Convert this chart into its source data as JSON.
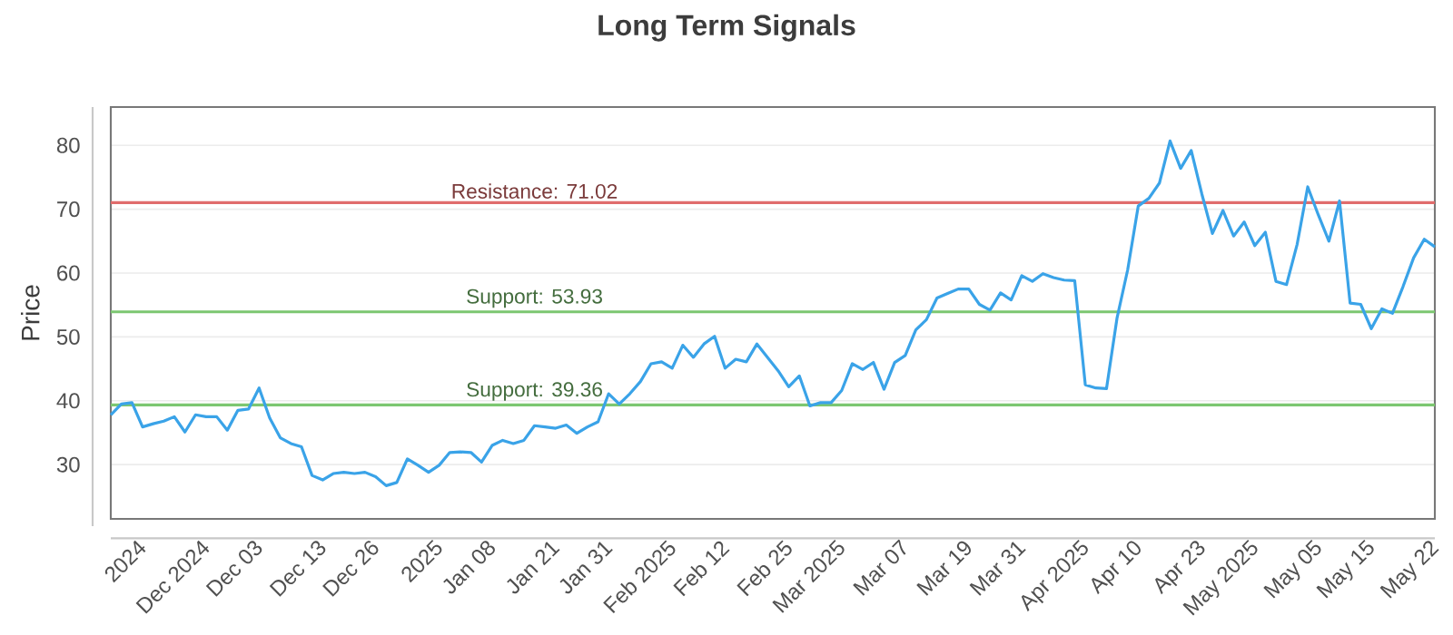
{
  "chart_data": {
    "type": "line",
    "title": "Long Term Signals",
    "ylabel": "Price",
    "categories": [
      null,
      "2024",
      null,
      null,
      null,
      null,
      null,
      "Dec 2024",
      null,
      null,
      null,
      null,
      "Dec 03",
      null,
      null,
      null,
      null,
      null,
      "Dec 13",
      null,
      null,
      null,
      null,
      "Dec 26",
      null,
      null,
      null,
      null,
      null,
      "2025",
      null,
      null,
      null,
      null,
      "Jan 08",
      null,
      null,
      null,
      null,
      null,
      "Jan 21",
      null,
      null,
      null,
      null,
      "Jan 31",
      null,
      null,
      null,
      null,
      null,
      "Feb 2025",
      null,
      null,
      null,
      null,
      "Feb 12",
      null,
      null,
      null,
      null,
      null,
      "Feb 25",
      null,
      null,
      null,
      null,
      "Mar 2025",
      null,
      null,
      null,
      null,
      null,
      "Mar 07",
      null,
      null,
      null,
      null,
      null,
      "Mar 19",
      null,
      null,
      null,
      null,
      "Mar 31",
      null,
      null,
      null,
      null,
      null,
      "Apr 2025",
      null,
      null,
      null,
      null,
      "Apr 10",
      null,
      null,
      null,
      null,
      null,
      "Apr 23",
      null,
      null,
      null,
      null,
      "May 2025",
      null,
      null,
      null,
      null,
      null,
      "May 05",
      null,
      null,
      null,
      null,
      "May 15",
      null,
      null,
      null,
      null,
      null,
      "May 22",
      null,
      null
    ],
    "series": [
      {
        "color": "#3aa3e8",
        "values": [
          37.8,
          39.5,
          39.7,
          35.9,
          36.4,
          36.8,
          37.5,
          35.1,
          37.8,
          37.5,
          37.5,
          35.4,
          38.5,
          38.7,
          42.0,
          37.3,
          34.2,
          33.3,
          32.8,
          28.3,
          27.6,
          28.6,
          28.8,
          28.6,
          28.8,
          28.1,
          26.7,
          27.2,
          30.9,
          29.9,
          28.8,
          29.9,
          31.9,
          32.0,
          31.9,
          30.4,
          33.0,
          33.8,
          33.3,
          33.8,
          36.1,
          35.9,
          35.7,
          36.2,
          34.9,
          35.9,
          36.7,
          41.1,
          39.5,
          41.1,
          43.0,
          45.8,
          46.1,
          45.1,
          48.7,
          46.8,
          48.9,
          50.1,
          45.1,
          46.5,
          46.1,
          48.9,
          46.8,
          44.7,
          42.2,
          43.9,
          39.2,
          39.7,
          39.7,
          41.6,
          45.8,
          44.9,
          46.0,
          41.8,
          46.0,
          47.1,
          51.1,
          52.7,
          56.1,
          56.8,
          57.5,
          57.5,
          55.1,
          54.2,
          56.9,
          55.8,
          59.6,
          58.7,
          59.9,
          59.3,
          58.9,
          58.8,
          42.5,
          42.0,
          41.9,
          53.0,
          60.5,
          70.5,
          71.7,
          74.1,
          80.7,
          76.4,
          79.2,
          72.4,
          66.2,
          69.8,
          65.8,
          68.0,
          64.3,
          66.4,
          58.7,
          58.2,
          64.5,
          73.5,
          69.1,
          65.0,
          71.3,
          55.3,
          55.1,
          51.3,
          54.4,
          53.7,
          57.9,
          62.4,
          65.3,
          64.1
        ]
      }
    ],
    "ylim": [
      21.5,
      86
    ],
    "yticks": [
      30,
      40,
      50,
      60,
      70,
      80
    ],
    "grid": "y",
    "legend": false,
    "marker": "none",
    "line_style": "solid",
    "ref_lines": [
      {
        "axis": "y",
        "value": 71.02,
        "label": "Resistance: 71.02",
        "color": "#e06c6c"
      },
      {
        "axis": "y",
        "value": 53.93,
        "label": "Support: 53.93",
        "color": "#7cc771"
      },
      {
        "axis": "y",
        "value": 39.36,
        "label": "Support: 39.36",
        "color": "#7cc771"
      }
    ]
  }
}
